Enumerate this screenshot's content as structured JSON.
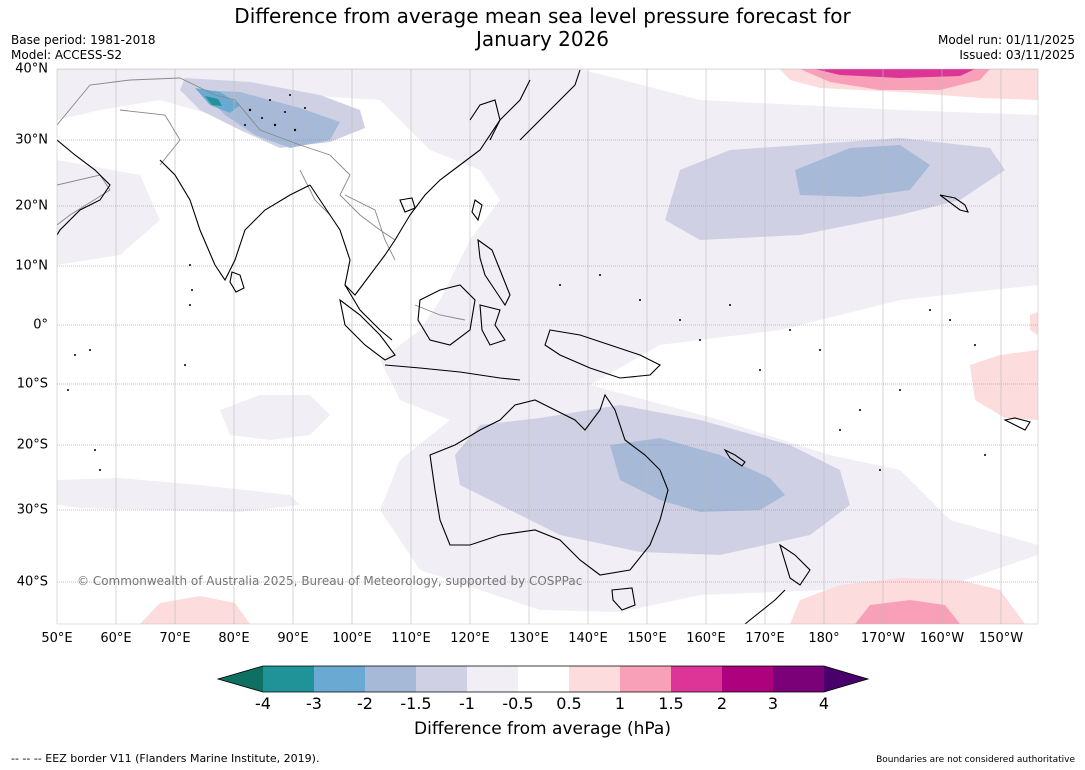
{
  "header": {
    "title_line1": "Difference from average mean sea level pressure forecast for",
    "title_line2": "January 2026",
    "base_period": "Base period: 1981-2018",
    "model": "Model: ACCESS-S2",
    "model_run": "Model run: 01/11/2025",
    "issued": "Issued: 03/11/2025"
  },
  "map": {
    "lat_labels": [
      "40°N",
      "30°N",
      "20°N",
      "10°N",
      "0°",
      "10°S",
      "20°S",
      "30°S",
      "40°S"
    ],
    "lon_labels": [
      "50°E",
      "60°E",
      "70°E",
      "80°E",
      "90°E",
      "100°E",
      "110°E",
      "120°E",
      "130°E",
      "140°E",
      "150°E",
      "160°E",
      "170°E",
      "180°",
      "170°W",
      "160°W",
      "150°W"
    ],
    "copyright": "© Commonwealth of Australia 2025, Bureau of Meteorology, supported by COSPPac"
  },
  "colorbar": {
    "ticks": [
      "-4",
      "-3",
      "-2",
      "-1.5",
      "-1",
      "-0.5",
      "0.5",
      "1",
      "1.5",
      "2",
      "3",
      "4"
    ],
    "colors": [
      "#0e6f63",
      "#1f9397",
      "#6aa9d2",
      "#a6bad8",
      "#d0d0e4",
      "#f2eef5",
      "#ffffff",
      "#fcdcdc",
      "#f7a0b8",
      "#dd3497",
      "#ae017e",
      "#7a0177",
      "#49006a"
    ],
    "label": "Difference from average (hPa)"
  },
  "footer": {
    "eez": "--  --  -- EEZ border V11 (Flanders Marine Institute, 2019).",
    "boundaries": "Boundaries are not considered authoritative"
  }
}
